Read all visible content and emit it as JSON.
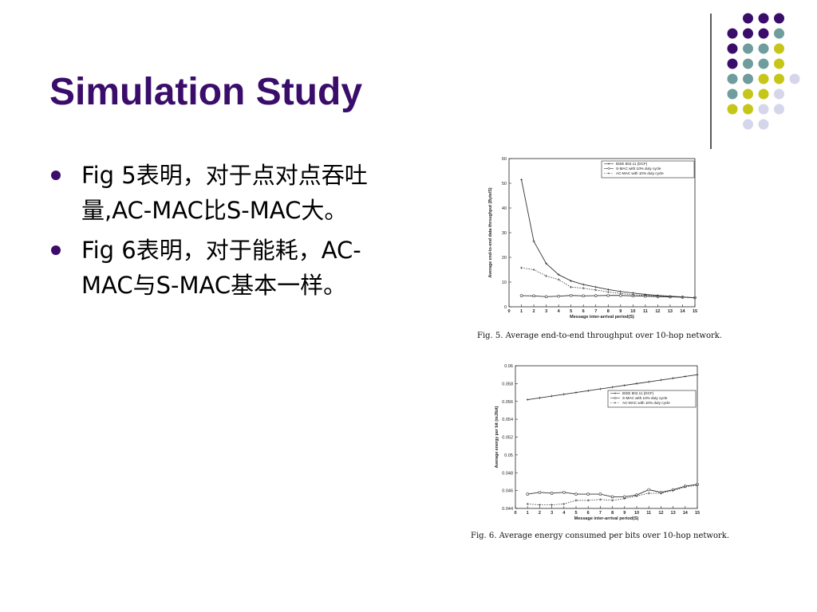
{
  "slide": {
    "title": "Simulation Study",
    "bullets": [
      "Fig 5表明，对于点对点吞吐量,AC-MAC比S-MAC大。",
      "Fig 6表明，对于能耗，AC-MAC与S-MAC基本一样。"
    ],
    "colors": {
      "title": "#3a0d6b",
      "dot_purple": "#3a0d6b",
      "dot_teal": "#6f9c9c",
      "dot_yellow": "#c6c619",
      "dot_lavender": "#d6d6ea"
    }
  },
  "chart_data": [
    {
      "type": "line",
      "caption": "Fig. 5.    Average end-to-end throughput over 10-hop network.",
      "xlabel": "Message inter-arrival period(S)",
      "ylabel": "Average end-to-end data throughput (Byte/S)",
      "x": [
        1,
        2,
        3,
        4,
        5,
        6,
        7,
        8,
        9,
        10,
        11,
        12,
        13,
        14,
        15
      ],
      "xlim": [
        0,
        15
      ],
      "ylim": [
        0,
        60
      ],
      "yticks": [
        0,
        10,
        20,
        30,
        40,
        50,
        60
      ],
      "xticks": [
        0,
        1,
        2,
        3,
        4,
        5,
        6,
        7,
        8,
        9,
        10,
        11,
        12,
        13,
        14,
        15
      ],
      "legend_position": "top-right",
      "series": [
        {
          "name": "IEEE 802.11 (DCF)",
          "values": [
            51.5,
            26.5,
            17.5,
            13,
            10.5,
            9,
            8,
            7,
            6.2,
            5.6,
            5,
            4.6,
            4.3,
            4.0,
            3.6
          ]
        },
        {
          "name": "S-MAC with 10% duty cycle",
          "values": [
            4.5,
            4.4,
            4.1,
            4.3,
            4.6,
            4.4,
            4.5,
            4.6,
            4.6,
            4.4,
            4.3,
            4.1,
            4.0,
            3.9,
            3.7
          ]
        },
        {
          "name": "AC-MAC with 10% duty cycle",
          "values": [
            15.8,
            15.0,
            12.5,
            11.0,
            8.0,
            7.5,
            6.8,
            6.0,
            5.4,
            4.9,
            4.6,
            4.3,
            4.1,
            3.9,
            3.6
          ]
        }
      ]
    },
    {
      "type": "line",
      "caption": "Fig. 6.    Average energy consumed per bits over 10-hop network.",
      "xlabel": "Message inter-arrival period(S)",
      "ylabel": "Average energy per bit (mJ/bit)",
      "x": [
        1,
        2,
        3,
        4,
        5,
        6,
        7,
        8,
        9,
        10,
        11,
        12,
        13,
        14,
        15
      ],
      "xlim": [
        0,
        15
      ],
      "ylim": [
        0.044,
        0.06
      ],
      "yticks": [
        0.044,
        0.046,
        0.048,
        0.05,
        0.052,
        0.054,
        0.056,
        0.058,
        0.06
      ],
      "xticks": [
        0,
        1,
        2,
        3,
        4,
        5,
        6,
        7,
        8,
        9,
        10,
        11,
        12,
        13,
        14,
        15
      ],
      "legend_position": "top-right",
      "series": [
        {
          "name": "IEEE 802.11 (DCF)",
          "values": [
            0.0562,
            0.0564,
            0.0566,
            0.0568,
            0.057,
            0.0572,
            0.0574,
            0.0576,
            0.0578,
            0.058,
            0.0582,
            0.0584,
            0.0586,
            0.0588,
            0.059
          ]
        },
        {
          "name": "S-MAC with 10% duty cycle",
          "values": [
            0.0456,
            0.0458,
            0.0457,
            0.0458,
            0.0456,
            0.0456,
            0.0456,
            0.0453,
            0.0453,
            0.0455,
            0.0461,
            0.0458,
            0.0461,
            0.0465,
            0.0467
          ]
        },
        {
          "name": "AC-MAC with 10% duty cycle",
          "values": [
            0.0445,
            0.0444,
            0.0444,
            0.0445,
            0.0449,
            0.0449,
            0.045,
            0.0449,
            0.0451,
            0.0454,
            0.0457,
            0.0457,
            0.046,
            0.0464,
            0.0466
          ]
        }
      ]
    }
  ]
}
